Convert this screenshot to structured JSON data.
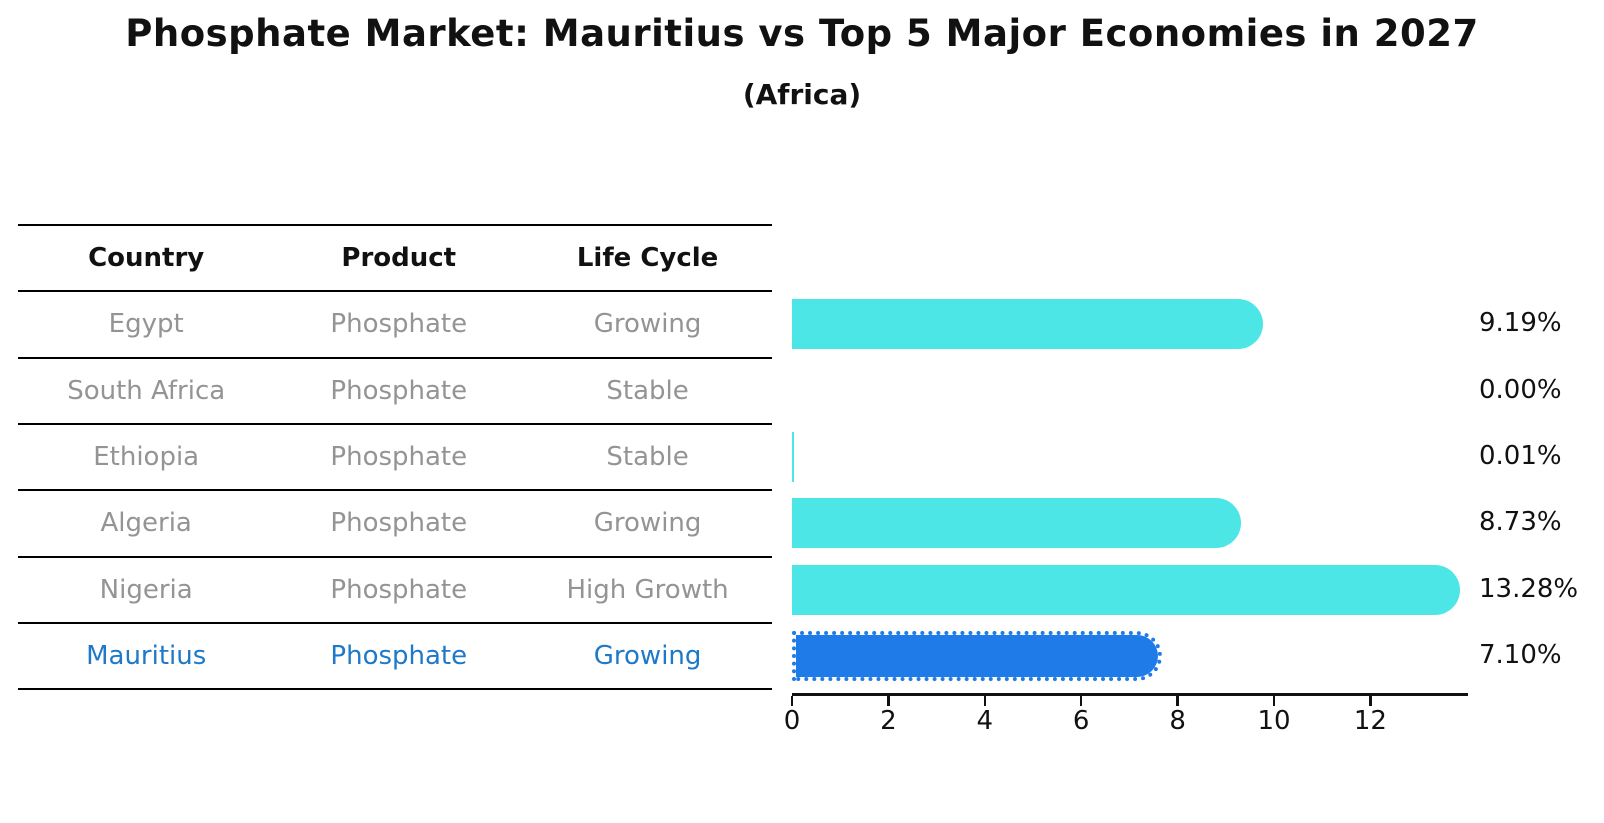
{
  "title": "Phosphate Market: Mauritius vs Top 5 Major Economies in 2027",
  "subtitle": "(Africa)",
  "table": {
    "columns": [
      "Country",
      "Product",
      "Life Cycle"
    ],
    "rows": [
      {
        "country": "Egypt",
        "product": "Phosphate",
        "life_cycle": "Growing",
        "highlight": false
      },
      {
        "country": "South Africa",
        "product": "Phosphate",
        "life_cycle": "Stable",
        "highlight": false
      },
      {
        "country": "Ethiopia",
        "product": "Phosphate",
        "life_cycle": "Stable",
        "highlight": false
      },
      {
        "country": "Algeria",
        "product": "Phosphate",
        "life_cycle": "Growing",
        "highlight": false
      },
      {
        "country": "Nigeria",
        "product": "Phosphate",
        "life_cycle": "High Growth",
        "highlight": false
      },
      {
        "country": "Mauritius",
        "product": "Phosphate",
        "life_cycle": "Growing",
        "highlight": true
      }
    ]
  },
  "chart_data": {
    "type": "bar",
    "orientation": "horizontal",
    "title": "Phosphate Market: Mauritius vs Top 5 Major Economies in 2027",
    "subtitle": "(Africa)",
    "categories": [
      "Egypt",
      "South Africa",
      "Ethiopia",
      "Algeria",
      "Nigeria",
      "Mauritius"
    ],
    "values": [
      9.19,
      0.0,
      0.01,
      8.73,
      13.28,
      7.1
    ],
    "value_labels": [
      "9.19%",
      "0.00%",
      "0.01%",
      "8.73%",
      "13.28%",
      "7.10%"
    ],
    "xlabel": "",
    "ylabel": "",
    "xlim": [
      0,
      14.03
    ],
    "x_ticks": [
      0,
      2,
      4,
      6,
      8,
      10,
      12
    ],
    "x_tick_labels": [
      "0",
      "2",
      "4",
      "6",
      "8",
      "10",
      "12"
    ],
    "grid": false,
    "legend": "none",
    "highlight_category": "Mauritius"
  },
  "colors": {
    "bar_cyan": "#4DE6E6",
    "bar_blue": "#1E7BE8",
    "highlight_text": "#1E79C8",
    "table_text": "#949494",
    "header_text": "#111111",
    "axis": "#111111",
    "background": "#ffffff"
  }
}
